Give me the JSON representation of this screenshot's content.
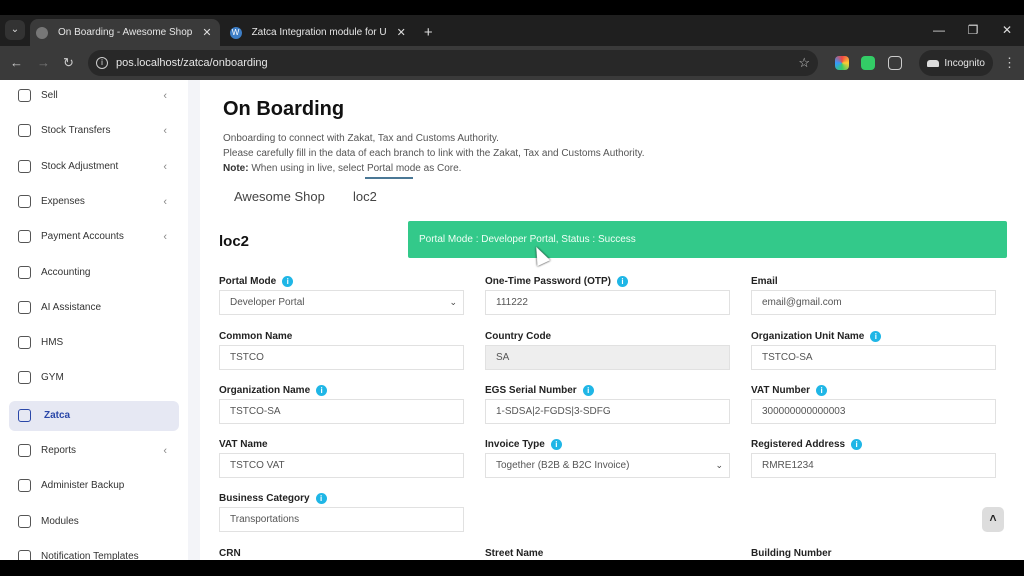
{
  "browser": {
    "tabs": [
      {
        "title": "On Boarding - Awesome Shop",
        "active": true
      },
      {
        "title": "Zatca Integration module for U",
        "active": false
      }
    ],
    "url": "pos.localhost/zatca/onboarding",
    "profile": "Incognito"
  },
  "sidebar": {
    "items": [
      {
        "label": "Sell",
        "icon": "upload-icon",
        "chevron": true
      },
      {
        "label": "Stock Transfers",
        "icon": "truck-icon",
        "chevron": true
      },
      {
        "label": "Stock Adjustment",
        "icon": "database-icon",
        "chevron": true
      },
      {
        "label": "Expenses",
        "icon": "dollar-receipt-icon",
        "chevron": true
      },
      {
        "label": "Payment Accounts",
        "icon": "credit-card-icon",
        "chevron": true
      },
      {
        "label": "Accounting",
        "icon": "bank-icon",
        "chevron": false
      },
      {
        "label": "AI Assistance",
        "icon": "robot-icon",
        "chevron": false
      },
      {
        "label": "HMS",
        "icon": "home-icon",
        "chevron": false
      },
      {
        "label": "GYM",
        "icon": "dumbbell-icon",
        "chevron": false
      },
      {
        "label": "Zatca",
        "icon": "receipt-icon",
        "chevron": false,
        "active": true
      },
      {
        "label": "Reports",
        "icon": "report-icon",
        "chevron": true
      },
      {
        "label": "Administer Backup",
        "icon": "cloud-upload-icon",
        "chevron": false
      },
      {
        "label": "Modules",
        "icon": "layers-icon",
        "chevron": false
      },
      {
        "label": "Notification Templates",
        "icon": "mail-icon",
        "chevron": false
      }
    ]
  },
  "main": {
    "title": "On Boarding",
    "desc1": "Onboarding to connect with Zakat, Tax and Customs Authority.",
    "desc2": "Please carefully fill in the data of each branch to link with the Zakat, Tax and Customs Authority.",
    "note_label": "Note:",
    "note_text": " When using in live, select Portal mode as Core.",
    "branch_tabs": [
      {
        "label": "Awesome Shop"
      },
      {
        "label": "loc2",
        "active": true
      }
    ],
    "section_title": "loc2",
    "toast": "Portal Mode : Developer Portal, Status : Success",
    "toast_color": "#33c98a",
    "fields": [
      {
        "label": "Portal Mode",
        "info": true,
        "value": "Developer Portal",
        "type": "select"
      },
      {
        "label": "One-Time Password (OTP)",
        "info": true,
        "value": "111222"
      },
      {
        "label": "Email",
        "info": false,
        "value": "email@gmail.com"
      },
      {
        "label": "Common Name",
        "info": false,
        "value": "TSTCO"
      },
      {
        "label": "Country Code",
        "info": false,
        "value": "SA",
        "disabled": true
      },
      {
        "label": "Organization Unit Name",
        "info": true,
        "value": "TSTCO-SA"
      },
      {
        "label": "Organization Name",
        "info": true,
        "value": "TSTCO-SA"
      },
      {
        "label": "EGS Serial Number",
        "info": true,
        "value": "1-SDSA|2-FGDS|3-SDFG"
      },
      {
        "label": "VAT Number",
        "info": true,
        "value": "300000000000003"
      },
      {
        "label": "VAT Name",
        "info": false,
        "value": "TSTCO VAT"
      },
      {
        "label": "Invoice Type",
        "info": true,
        "value": "Together (B2B & B2C Invoice)",
        "type": "select"
      },
      {
        "label": "Registered Address",
        "info": true,
        "value": "RMRE1234"
      },
      {
        "label": "Business Category",
        "info": true,
        "value": "Transportations"
      },
      null,
      null,
      {
        "label": "CRN",
        "info": false
      },
      {
        "label": "Street Name",
        "info": false
      },
      {
        "label": "Building Number",
        "info": false
      }
    ]
  }
}
